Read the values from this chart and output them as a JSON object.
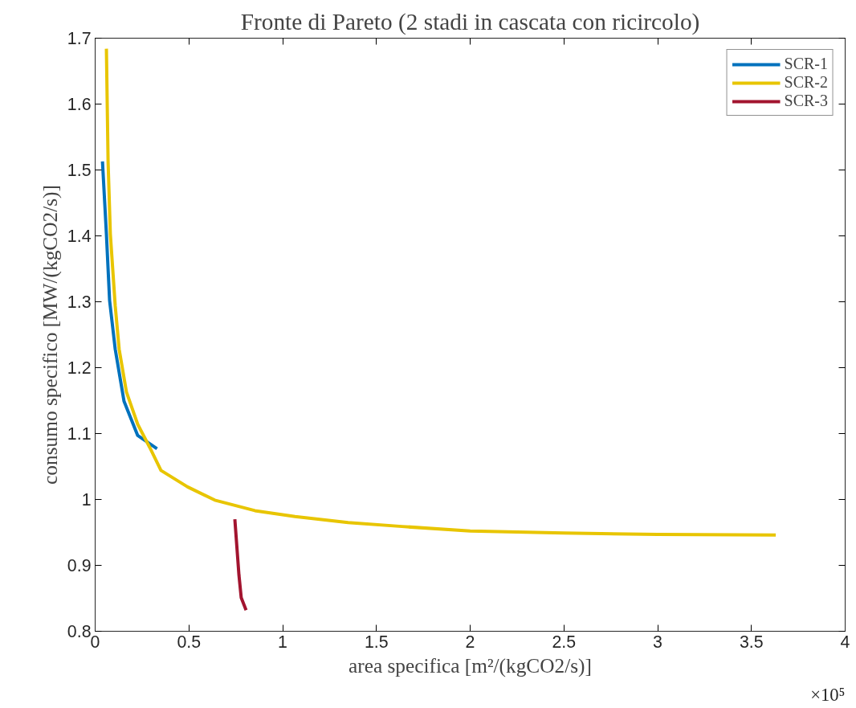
{
  "chart_data": {
    "type": "line",
    "title": "Fronte di Pareto (2 stadi in cascata con ricircolo)",
    "xlabel": "area specifica [m²/(kgCO2/s)]",
    "ylabel": "consumo specifico [MW/(kgCO2/s)]",
    "annotations": [
      "×10⁵"
    ],
    "xlim": [
      0,
      4
    ],
    "xticks": [
      0,
      0.5,
      1,
      1.5,
      2,
      2.5,
      3,
      3.5,
      4
    ],
    "ylim": [
      0.8,
      1.7
    ],
    "yticks": [
      0.8,
      0.9,
      {
        "value": 1.0,
        "label": "1"
      },
      1.1,
      1.2,
      1.3,
      1.4,
      1.5,
      1.6,
      1.7
    ],
    "grid": false,
    "legend": "top right",
    "line_style": "solid",
    "marker": "none",
    "series": [
      {
        "name": "SCR-1",
        "color": "#0072bd",
        "x": [
          0.039,
          0.06,
          0.077,
          0.107,
          0.154,
          0.227,
          0.33
        ],
        "values": [
          1.513,
          1.403,
          1.302,
          1.228,
          1.149,
          1.097,
          1.077
        ]
      },
      {
        "name": "SCR-2",
        "color": "#e8c500",
        "x": [
          0.06,
          0.069,
          0.081,
          0.107,
          0.128,
          0.167,
          0.227,
          0.291,
          0.351,
          0.493,
          0.638,
          0.852,
          1.066,
          1.349,
          1.636,
          2.0,
          2.5,
          3.0,
          3.63
        ],
        "values": [
          1.684,
          1.512,
          1.403,
          1.294,
          1.228,
          1.163,
          1.114,
          1.079,
          1.044,
          1.019,
          0.999,
          0.983,
          0.974,
          0.965,
          0.959,
          0.952,
          0.949,
          0.947,
          0.946
        ]
      },
      {
        "name": "SCR-3",
        "color": "#a2142f",
        "x": [
          0.745,
          0.767,
          0.779,
          0.805
        ],
        "values": [
          0.97,
          0.885,
          0.851,
          0.832
        ]
      }
    ]
  }
}
